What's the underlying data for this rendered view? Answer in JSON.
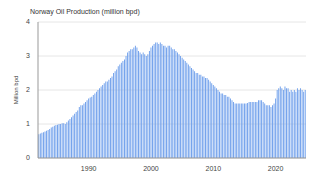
{
  "chart_data": {
    "type": "bar",
    "title": "Norway Oil Production  (million bpd)",
    "y_label": "Million bpd",
    "categories": [
      null,
      null,
      null,
      null,
      null,
      null,
      null,
      null,
      null,
      null,
      null,
      null,
      null,
      null,
      null,
      null,
      null,
      null,
      null,
      null,
      null,
      null,
      null,
      null,
      null,
      null,
      null,
      null,
      null,
      null,
      null,
      null,
      "1990",
      null,
      null,
      null,
      null,
      null,
      null,
      null,
      null,
      null,
      null,
      null,
      null,
      null,
      null,
      null,
      null,
      null,
      null,
      null,
      null,
      null,
      null,
      null,
      null,
      null,
      null,
      null,
      null,
      null,
      null,
      null,
      null,
      null,
      null,
      null,
      null,
      null,
      null,
      null,
      "2000",
      null,
      null,
      null,
      null,
      null,
      null,
      null,
      null,
      null,
      null,
      null,
      null,
      null,
      null,
      null,
      null,
      null,
      null,
      null,
      null,
      null,
      null,
      null,
      null,
      null,
      null,
      null,
      null,
      null,
      null,
      null,
      null,
      null,
      null,
      null,
      null,
      null,
      null,
      null,
      "2010",
      null,
      null,
      null,
      null,
      null,
      null,
      null,
      null,
      null,
      null,
      null,
      null,
      null,
      null,
      null,
      null,
      null,
      null,
      null,
      null,
      null,
      null,
      null,
      null,
      null,
      null,
      null,
      null,
      null,
      null,
      null,
      null,
      null,
      null,
      null,
      null,
      null,
      null,
      null,
      "2020",
      null,
      null,
      null,
      null,
      null,
      null,
      null,
      null,
      null,
      null,
      null,
      null,
      null,
      null,
      null,
      null,
      null,
      null,
      null
    ],
    "values": [
      0.7,
      0.72,
      0.74,
      0.76,
      0.78,
      0.8,
      0.82,
      0.85,
      0.9,
      0.92,
      0.95,
      0.97,
      0.98,
      1.0,
      1.0,
      1.02,
      1.02,
      1.0,
      1.05,
      1.1,
      1.15,
      1.2,
      1.25,
      1.3,
      1.35,
      1.4,
      1.5,
      1.55,
      1.55,
      1.6,
      1.65,
      1.7,
      1.75,
      1.78,
      1.8,
      1.85,
      1.9,
      1.95,
      2.0,
      2.05,
      2.1,
      2.15,
      2.2,
      2.25,
      2.25,
      2.3,
      2.35,
      2.4,
      2.5,
      2.55,
      2.6,
      2.7,
      2.75,
      2.8,
      2.85,
      2.9,
      3.0,
      3.1,
      3.15,
      3.2,
      3.2,
      3.25,
      3.3,
      3.25,
      3.15,
      3.1,
      3.05,
      3.1,
      3.05,
      3.0,
      3.05,
      3.15,
      3.25,
      3.3,
      3.35,
      3.4,
      3.4,
      3.35,
      3.4,
      3.35,
      3.3,
      3.3,
      3.25,
      3.3,
      3.3,
      3.25,
      3.2,
      3.2,
      3.15,
      3.1,
      3.05,
      3.0,
      2.95,
      2.9,
      2.85,
      2.8,
      2.75,
      2.7,
      2.65,
      2.6,
      2.55,
      2.5,
      2.5,
      2.45,
      2.45,
      2.4,
      2.4,
      2.35,
      2.35,
      2.3,
      2.25,
      2.2,
      2.15,
      2.1,
      2.05,
      2.0,
      1.95,
      1.9,
      1.9,
      1.85,
      1.85,
      1.8,
      1.8,
      1.75,
      1.7,
      1.65,
      1.6,
      1.6,
      1.6,
      1.6,
      1.6,
      1.6,
      1.6,
      1.6,
      1.62,
      1.65,
      1.65,
      1.65,
      1.65,
      1.65,
      1.65,
      1.7,
      1.7,
      1.7,
      1.65,
      1.6,
      1.55,
      1.55,
      1.55,
      1.5,
      1.55,
      1.6,
      1.75,
      2.0,
      2.05,
      2.1,
      2.05,
      2.0,
      2.1,
      2.05,
      2.05,
      1.95,
      2.0,
      1.95,
      2.0,
      1.95,
      2.05,
      2.0,
      2.05,
      2.0,
      1.95,
      2.0
    ],
    "color": "#6d9eeb",
    "ylim": [
      0,
      4
    ],
    "yticks": [
      0,
      1,
      2,
      3,
      4
    ],
    "grid": true
  }
}
